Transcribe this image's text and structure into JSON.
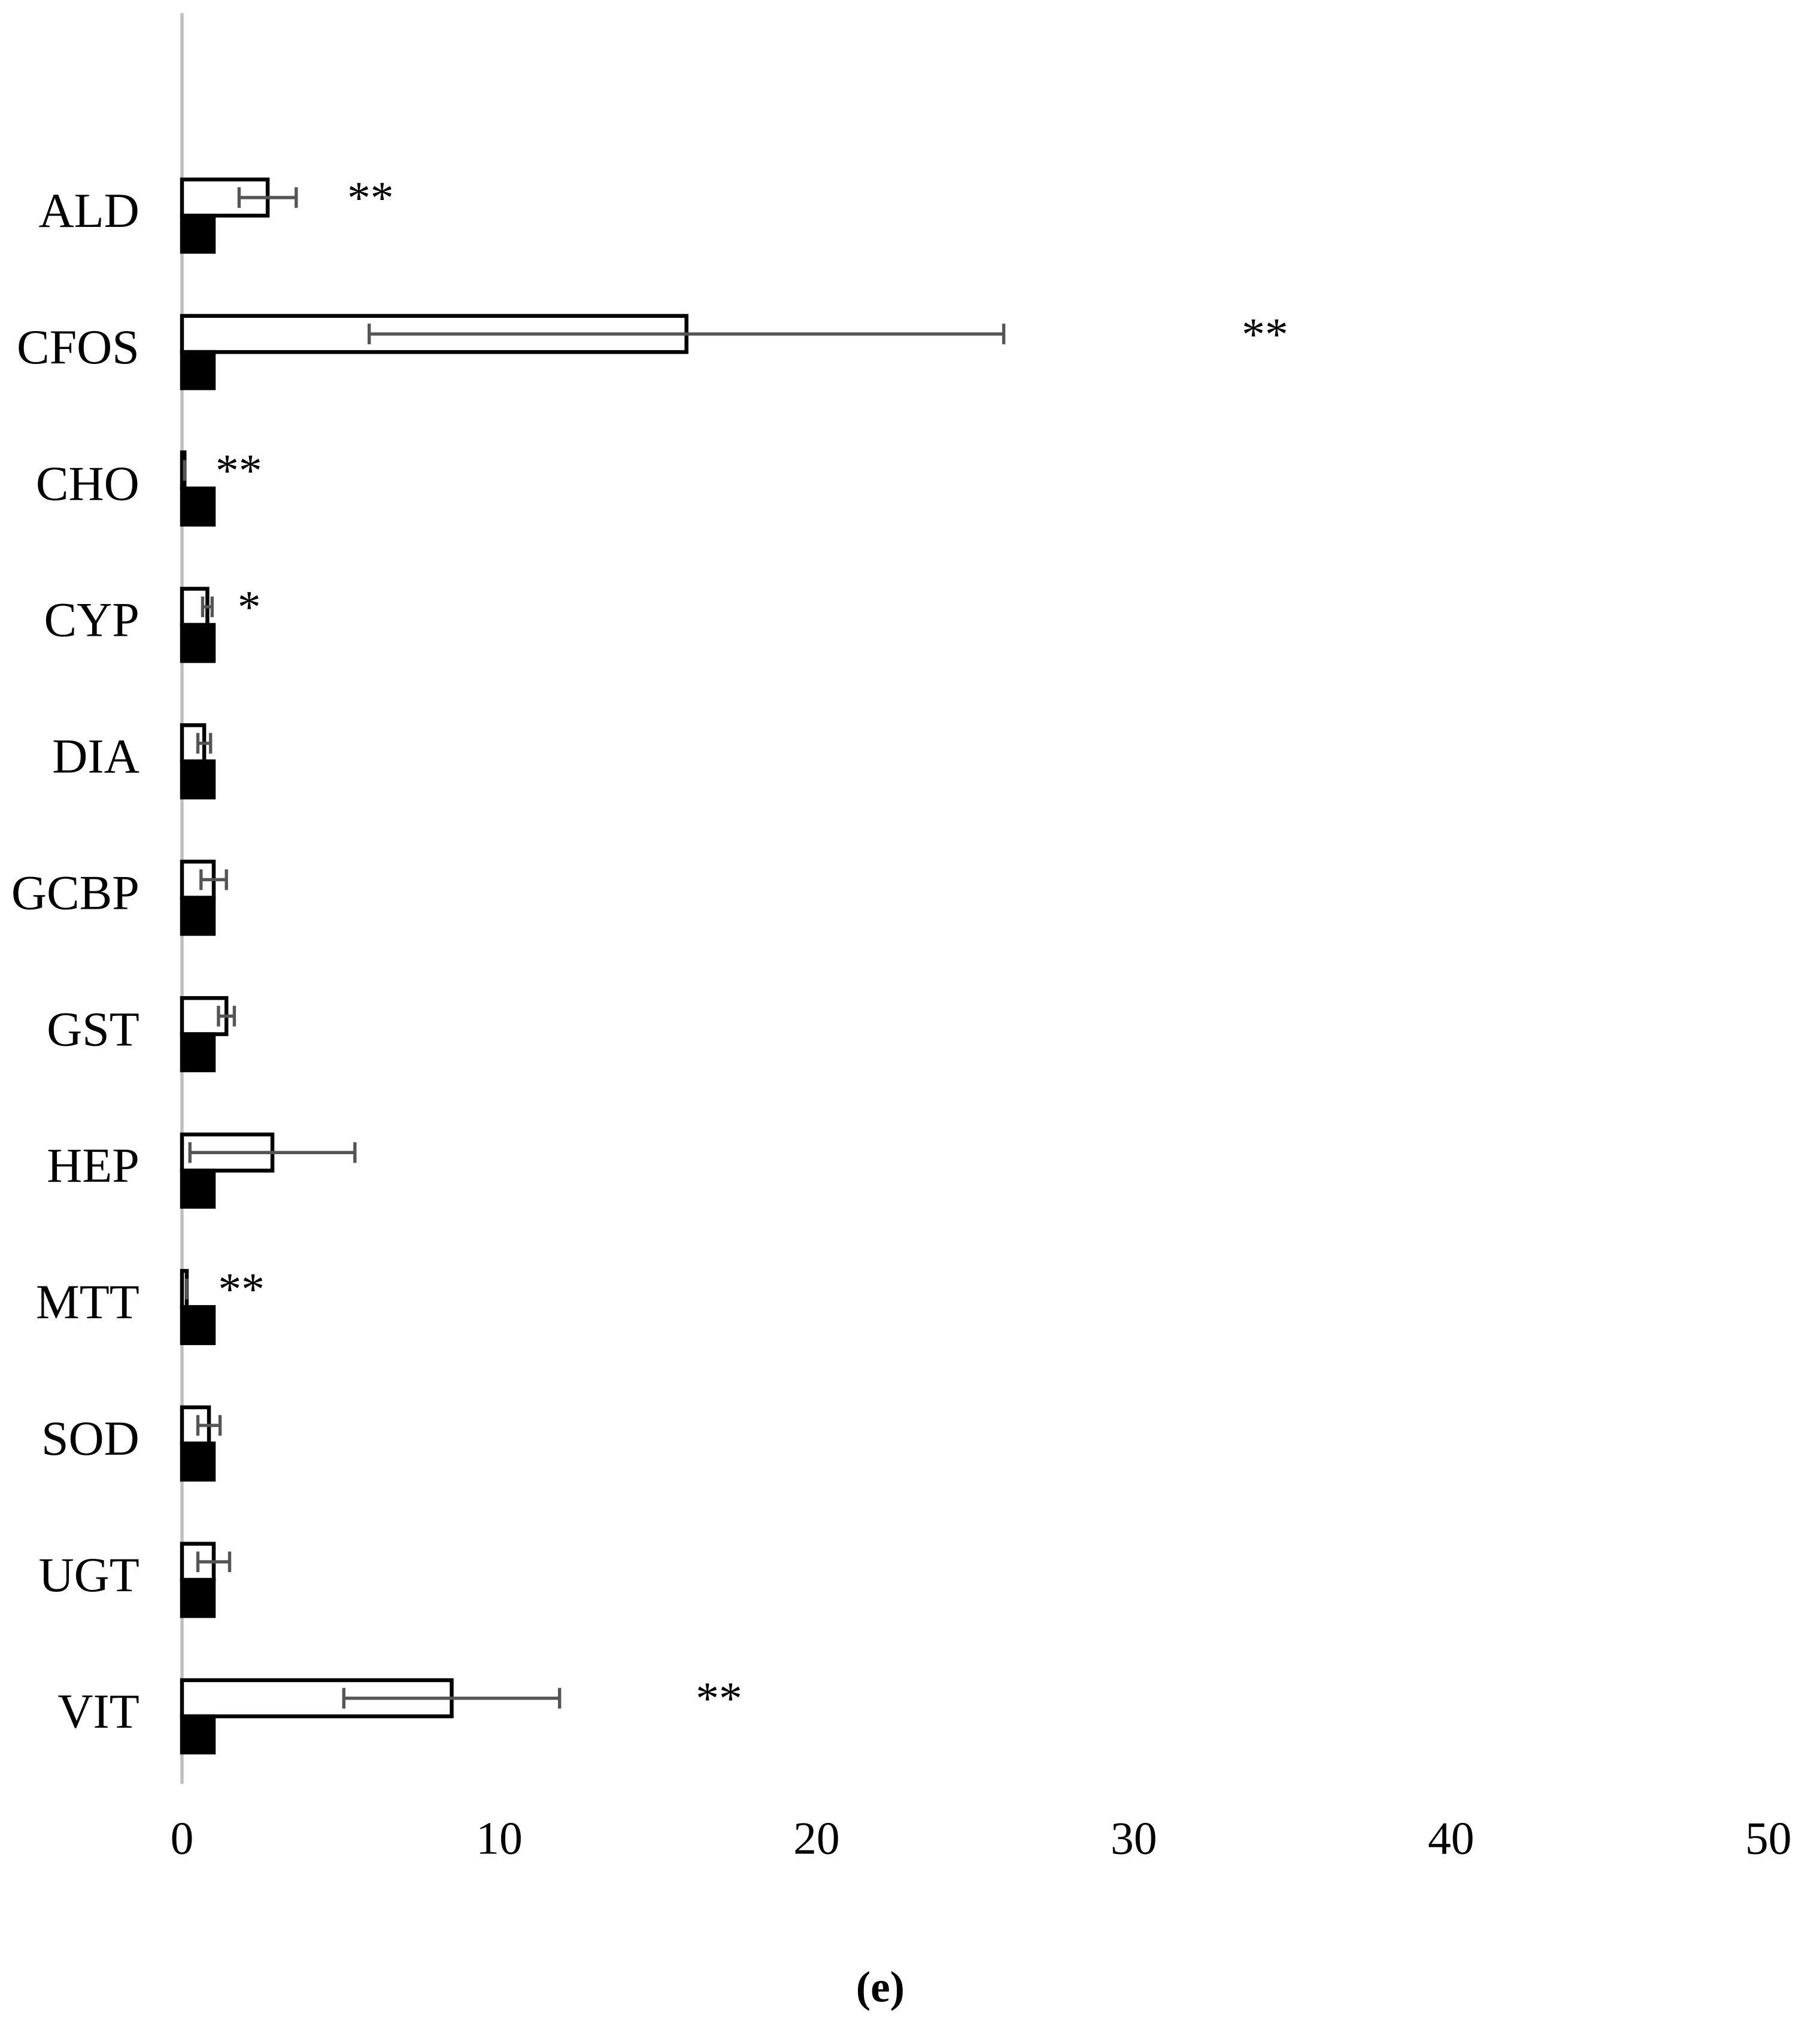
{
  "chart_data": {
    "type": "bar",
    "orientation": "horizontal",
    "categories": [
      "ALD",
      "CFOS",
      "CHO",
      "CYP",
      "DIA",
      "GCBP",
      "GST",
      "HEP",
      "MTT",
      "SOD",
      "UGT",
      "VIT"
    ],
    "series": [
      {
        "color": "#ffffff",
        "values": [
          2.7,
          15.9,
          0.08,
          0.8,
          0.7,
          1.0,
          1.4,
          2.85,
          0.15,
          0.85,
          1.0,
          8.5
        ],
        "errors": [
          0.9,
          10,
          0,
          0.15,
          0.2,
          0.4,
          0.25,
          2.6,
          0,
          0.35,
          0.5,
          3.4
        ]
      },
      {
        "color": "#000000",
        "values": [
          1,
          1,
          1,
          1,
          1,
          1,
          1,
          1,
          1,
          1,
          1,
          1
        ]
      }
    ],
    "significance": [
      "**",
      "**",
      "**",
      "*",
      null,
      null,
      null,
      null,
      "**",
      null,
      null,
      "**"
    ],
    "xlim": [
      0,
      50
    ],
    "xticks": [
      0,
      10,
      20,
      30,
      40,
      50
    ],
    "caption": "(e)"
  }
}
